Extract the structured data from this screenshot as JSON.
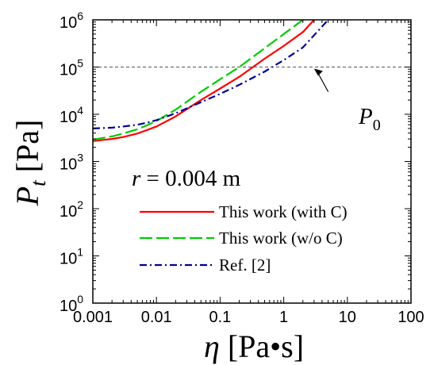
{
  "chart_data": {
    "type": "line",
    "x_scale": "log",
    "y_scale": "log",
    "xlim": [
      0.001,
      100
    ],
    "ylim": [
      1,
      1000000
    ],
    "x_ticks": [
      {
        "value": 0.001,
        "label": "0.001"
      },
      {
        "value": 0.01,
        "label": "0.01"
      },
      {
        "value": 0.1,
        "label": "0.1"
      },
      {
        "value": 1,
        "label": "1"
      },
      {
        "value": 10,
        "label": "10"
      },
      {
        "value": 100,
        "label": "100"
      }
    ],
    "y_ticks": [
      {
        "value": 1,
        "base": "10",
        "exp": "0"
      },
      {
        "value": 10,
        "base": "10",
        "exp": "1"
      },
      {
        "value": 100,
        "base": "10",
        "exp": "2"
      },
      {
        "value": 1000,
        "base": "10",
        "exp": "3"
      },
      {
        "value": 10000,
        "base": "10",
        "exp": "4"
      },
      {
        "value": 100000,
        "base": "10",
        "exp": "5"
      },
      {
        "value": 1000000,
        "base": "10",
        "exp": "6"
      }
    ],
    "xlabel": {
      "symbol": "η",
      "unit": " [Pa•s]"
    },
    "ylabel": {
      "symbol": "P",
      "sub": "t",
      "unit": " [Pa]"
    },
    "annotation_text": {
      "prefix": "r",
      "rest": " = 0.004 m"
    },
    "reference_line": {
      "y": 100000,
      "label_symbol": "P",
      "label_sub": "0",
      "style": "dashed",
      "color": "#555555",
      "label_anchor": [
        5,
        30000
      ]
    },
    "series": [
      {
        "name": "This work (with C)",
        "color": "#ff0000",
        "dash": "solid",
        "x": [
          0.001,
          0.002,
          0.003,
          0.005,
          0.007,
          0.01,
          0.02,
          0.05,
          0.1,
          0.2,
          0.5,
          1,
          2,
          3
        ],
        "y": [
          2700,
          3000,
          3300,
          3900,
          4600,
          5500,
          9000,
          20000,
          35000,
          62000,
          150000,
          280000,
          550000,
          1000000
        ]
      },
      {
        "name": "This work (w/o  C)",
        "color": "#00cc00",
        "dash": "long-dash",
        "x": [
          0.001,
          0.002,
          0.003,
          0.005,
          0.007,
          0.01,
          0.02,
          0.05,
          0.1,
          0.2,
          0.5,
          1,
          1.5,
          2
        ],
        "y": [
          2900,
          3400,
          3900,
          4800,
          5800,
          7200,
          12500,
          30000,
          55000,
          100000,
          250000,
          500000,
          750000,
          1000000
        ]
      },
      {
        "name": "Ref. [2]",
        "color": "#000099",
        "dash": "dash-dot",
        "x": [
          0.001,
          0.002,
          0.003,
          0.005,
          0.007,
          0.01,
          0.02,
          0.05,
          0.1,
          0.2,
          0.5,
          1,
          2,
          5
        ],
        "y": [
          5000,
          5200,
          5500,
          6000,
          6600,
          7500,
          10500,
          18000,
          27000,
          42000,
          80000,
          140000,
          260000,
          1000000
        ]
      }
    ],
    "legend_placement": "bottom-right inside plot",
    "grid": false
  }
}
